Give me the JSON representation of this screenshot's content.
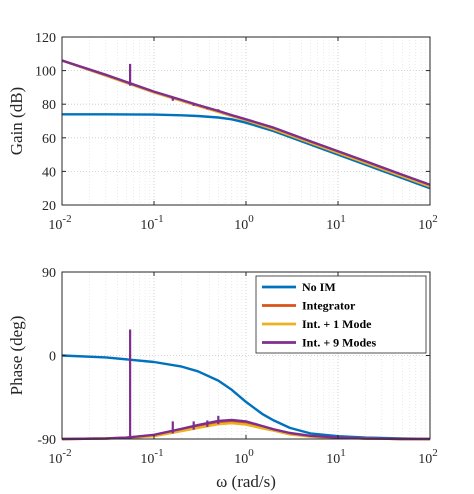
{
  "chart_data": [
    {
      "type": "line",
      "title": "",
      "xlabel": "",
      "ylabel": "Gain (dB)",
      "xscale": "log",
      "xlim": [
        0.01,
        100
      ],
      "ylim": [
        20,
        120
      ],
      "yticks": [
        20,
        40,
        60,
        80,
        100,
        120
      ],
      "xticks": [
        {
          "value": 0.01,
          "base": "10",
          "exp": "-2"
        },
        {
          "value": 0.1,
          "base": "10",
          "exp": "-1"
        },
        {
          "value": 1,
          "base": "10",
          "exp": "0"
        },
        {
          "value": 10,
          "base": "10",
          "exp": "1"
        },
        {
          "value": 100,
          "base": "10",
          "exp": "2"
        }
      ],
      "grid": true,
      "series": [
        {
          "name": "No IM",
          "color": "#0072BD",
          "x": [
            0.01,
            0.03,
            0.1,
            0.2,
            0.3,
            0.5,
            0.7,
            1,
            2,
            5,
            10,
            20,
            50,
            100
          ],
          "values": [
            74,
            74,
            73.8,
            73.4,
            73,
            72.1,
            71,
            69,
            64,
            56,
            50,
            44,
            36,
            30
          ]
        },
        {
          "name": "Integrator",
          "color": "#D95319",
          "x": [
            0.01,
            0.03,
            0.1,
            0.2,
            0.3,
            0.5,
            0.7,
            1,
            2,
            5,
            10,
            20,
            50,
            100
          ],
          "values": [
            106,
            97,
            87,
            82,
            79,
            75.5,
            73,
            70.5,
            65,
            57,
            51,
            45,
            37,
            31
          ]
        },
        {
          "name": "Int. + 1 Mode",
          "color": "#EDB120",
          "x": [
            0.01,
            0.03,
            0.1,
            0.2,
            0.3,
            0.5,
            0.7,
            1,
            2,
            5,
            10,
            20,
            50,
            100
          ],
          "values": [
            106,
            97,
            87,
            82,
            79,
            75.5,
            73,
            70.5,
            65,
            57,
            51,
            45,
            37,
            31
          ]
        },
        {
          "name": "Int. + 9 Modes",
          "color": "#7E2F8E",
          "x": [
            0.01,
            0.03,
            0.1,
            0.2,
            0.3,
            0.5,
            0.7,
            1,
            2,
            5,
            10,
            20,
            50,
            100
          ],
          "values": [
            106,
            97.5,
            87.5,
            82.5,
            79.5,
            76,
            73.5,
            71,
            66,
            58,
            52,
            46,
            38,
            32
          ]
        }
      ],
      "spikes": {
        "series": "Int. + 9 Modes",
        "items": [
          {
            "x": 0.055,
            "low": 91,
            "high": 104
          },
          {
            "x": 0.16,
            "low": 82,
            "high": 84
          },
          {
            "x": 0.27,
            "low": 79,
            "high": 80.5
          },
          {
            "x": 0.38,
            "low": 77,
            "high": 78.5
          },
          {
            "x": 0.5,
            "low": 75.5,
            "high": 77
          }
        ]
      }
    },
    {
      "type": "line",
      "title": "",
      "xlabel": "ω (rad/s)",
      "ylabel": "Phase (deg)",
      "xscale": "log",
      "xlim": [
        0.01,
        100
      ],
      "ylim": [
        -90,
        90
      ],
      "yticks": [
        -90,
        0,
        90
      ],
      "xticks": [
        {
          "value": 0.01,
          "base": "10",
          "exp": "-2"
        },
        {
          "value": 0.1,
          "base": "10",
          "exp": "-1"
        },
        {
          "value": 1,
          "base": "10",
          "exp": "0"
        },
        {
          "value": 10,
          "base": "10",
          "exp": "1"
        },
        {
          "value": 100,
          "base": "10",
          "exp": "2"
        }
      ],
      "grid": true,
      "legend_position": "top-right",
      "series": [
        {
          "name": "No IM",
          "color": "#0072BD",
          "x": [
            0.01,
            0.03,
            0.1,
            0.2,
            0.3,
            0.5,
            0.7,
            1,
            1.5,
            2,
            3,
            5,
            10,
            20,
            50,
            100
          ],
          "values": [
            0,
            -2,
            -7,
            -12,
            -17,
            -27,
            -37,
            -50,
            -63,
            -70,
            -78,
            -84,
            -87,
            -88.5,
            -89.5,
            -90
          ]
        },
        {
          "name": "Integrator",
          "color": "#D95319",
          "x": [
            0.01,
            0.03,
            0.05,
            0.1,
            0.2,
            0.3,
            0.5,
            0.7,
            1,
            1.5,
            2,
            3,
            5,
            10,
            20,
            50,
            100
          ],
          "values": [
            -90,
            -89.5,
            -88.5,
            -86,
            -80,
            -76,
            -72,
            -71,
            -72.5,
            -77,
            -80,
            -84,
            -87,
            -88.5,
            -89.5,
            -90,
            -90
          ]
        },
        {
          "name": "Int. + 1 Mode",
          "color": "#EDB120",
          "x": [
            0.01,
            0.03,
            0.05,
            0.1,
            0.2,
            0.3,
            0.5,
            0.7,
            1,
            1.5,
            2,
            3,
            5,
            10,
            20,
            50,
            100
          ],
          "values": [
            -90,
            -89.5,
            -89,
            -87,
            -81.5,
            -78,
            -74,
            -73,
            -74.5,
            -78.5,
            -81,
            -85,
            -87.5,
            -89,
            -89.5,
            -90,
            -90
          ]
        },
        {
          "name": "Int. + 9 Modes",
          "color": "#7E2F8E",
          "x": [
            0.01,
            0.03,
            0.05,
            0.1,
            0.2,
            0.3,
            0.5,
            0.7,
            1,
            1.5,
            2,
            3,
            5,
            10,
            20,
            50,
            100
          ],
          "values": [
            -90,
            -89.5,
            -88.5,
            -85.5,
            -79,
            -75,
            -70.5,
            -69.5,
            -71,
            -76,
            -79.5,
            -83.5,
            -86.5,
            -88.5,
            -89.5,
            -90,
            -90
          ]
        }
      ],
      "spikes": {
        "series": "Int. + 9 Modes",
        "items": [
          {
            "x": 0.055,
            "low": -90,
            "high": 28
          },
          {
            "x": 0.16,
            "low": -84,
            "high": -71
          },
          {
            "x": 0.27,
            "low": -80,
            "high": -71
          },
          {
            "x": 0.38,
            "low": -77,
            "high": -70
          },
          {
            "x": 0.5,
            "low": -74,
            "high": -65
          }
        ]
      }
    }
  ]
}
